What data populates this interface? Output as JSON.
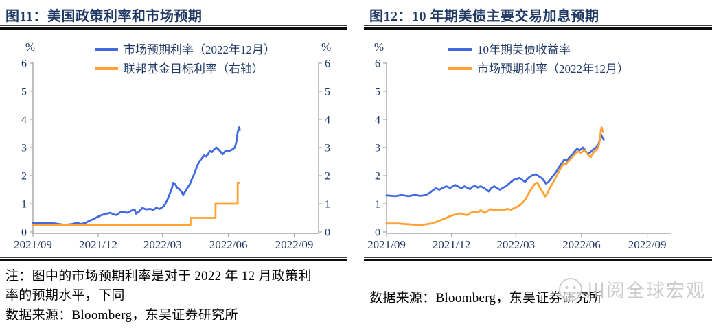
{
  "panels": [
    {
      "title": "图11：美国政策利率和市场预期",
      "note_line1": "注：图中的市场预期利率是对于 2022 年 12 月政策利",
      "note_line2": "率的预期水平，下同",
      "source": "数据来源：Bloomberg，东吴证券研究所"
    },
    {
      "title": "图12：10 年期美债主要交易加息预期",
      "source": "数据来源：Bloomberg，东吴证券研究所",
      "watermark": "川阅全球宏观"
    }
  ],
  "colors": {
    "blue_line": "#4169E1",
    "orange_line": "#FFA133",
    "navy_text": "#1F3864",
    "axis_gray": "#A6A6A6",
    "rule_black": "#0B0B0B",
    "watermark_gray": "#C6C6C6"
  },
  "chart_data": [
    {
      "type": "line",
      "title": "图11：美国政策利率和市场预期",
      "percent_left": "%",
      "percent_right": "%",
      "ylim": [
        0,
        6
      ],
      "yticks": [
        0,
        1,
        2,
        3,
        4,
        5,
        6
      ],
      "grid": false,
      "legend_position": "top-center",
      "x_domain": [
        "2021-09-01",
        "2022-10-05"
      ],
      "xticks": [
        "2021/09",
        "2021/12",
        "2022/03",
        "2022/06",
        "2022/09"
      ],
      "xtick_dates": [
        "2021-09-01",
        "2021-12-01",
        "2022-03-01",
        "2022-06-01",
        "2022-09-01"
      ],
      "series": [
        {
          "name": "市场预期利率（2022年12月）",
          "color": "#4169E1",
          "axis": "left",
          "points": [
            [
              "2021-09-01",
              0.32
            ],
            [
              "2021-09-13",
              0.31
            ],
            [
              "2021-09-27",
              0.32
            ],
            [
              "2021-10-07",
              0.28
            ],
            [
              "2021-10-16",
              0.25
            ],
            [
              "2021-10-26",
              0.28
            ],
            [
              "2021-11-02",
              0.33
            ],
            [
              "2021-11-07",
              0.28
            ],
            [
              "2021-11-14",
              0.33
            ],
            [
              "2021-11-19",
              0.4
            ],
            [
              "2021-11-24",
              0.45
            ],
            [
              "2021-11-29",
              0.52
            ],
            [
              "2021-12-06",
              0.6
            ],
            [
              "2021-12-13",
              0.65
            ],
            [
              "2021-12-18",
              0.68
            ],
            [
              "2021-12-23",
              0.62
            ],
            [
              "2021-12-27",
              0.6
            ],
            [
              "2022-01-01",
              0.7
            ],
            [
              "2022-01-06",
              0.72
            ],
            [
              "2022-01-11",
              0.68
            ],
            [
              "2022-01-16",
              0.75
            ],
            [
              "2022-01-21",
              0.8
            ],
            [
              "2022-01-23",
              0.65
            ],
            [
              "2022-01-27",
              0.72
            ],
            [
              "2022-02-01",
              0.85
            ],
            [
              "2022-02-06",
              0.8
            ],
            [
              "2022-02-12",
              0.82
            ],
            [
              "2022-02-16",
              0.78
            ],
            [
              "2022-02-20",
              0.85
            ],
            [
              "2022-02-25",
              0.82
            ],
            [
              "2022-03-02",
              0.9
            ],
            [
              "2022-03-05",
              1.0
            ],
            [
              "2022-03-08",
              1.15
            ],
            [
              "2022-03-11",
              1.35
            ],
            [
              "2022-03-14",
              1.55
            ],
            [
              "2022-03-16",
              1.75
            ],
            [
              "2022-03-19",
              1.68
            ],
            [
              "2022-03-22",
              1.55
            ],
            [
              "2022-03-25",
              1.52
            ],
            [
              "2022-03-28",
              1.4
            ],
            [
              "2022-03-30",
              1.32
            ],
            [
              "2022-04-02",
              1.45
            ],
            [
              "2022-04-05",
              1.58
            ],
            [
              "2022-04-08",
              1.68
            ],
            [
              "2022-04-10",
              1.82
            ],
            [
              "2022-04-13",
              1.98
            ],
            [
              "2022-04-16",
              2.18
            ],
            [
              "2022-04-19",
              2.38
            ],
            [
              "2022-04-22",
              2.52
            ],
            [
              "2022-04-25",
              2.62
            ],
            [
              "2022-04-28",
              2.72
            ],
            [
              "2022-05-01",
              2.68
            ],
            [
              "2022-05-04",
              2.78
            ],
            [
              "2022-05-06",
              2.88
            ],
            [
              "2022-05-09",
              2.84
            ],
            [
              "2022-05-12",
              2.93
            ],
            [
              "2022-05-15",
              3.0
            ],
            [
              "2022-05-18",
              2.94
            ],
            [
              "2022-05-21",
              2.85
            ],
            [
              "2022-05-24",
              2.76
            ],
            [
              "2022-05-27",
              2.85
            ],
            [
              "2022-05-30",
              2.9
            ],
            [
              "2022-06-02",
              2.88
            ],
            [
              "2022-06-04",
              2.9
            ],
            [
              "2022-06-07",
              2.94
            ],
            [
              "2022-06-10",
              3.0
            ],
            [
              "2022-06-12",
              3.18
            ],
            [
              "2022-06-14",
              3.55
            ],
            [
              "2022-06-16",
              3.72
            ],
            [
              "2022-06-17",
              3.62
            ]
          ]
        },
        {
          "name": "联邦基金目标利率（右轴）",
          "color": "#FFA133",
          "axis": "right",
          "points": [
            [
              "2021-09-01",
              0.25
            ],
            [
              "2022-04-09",
              0.25
            ],
            [
              "2022-04-09",
              0.5
            ],
            [
              "2022-05-14",
              0.5
            ],
            [
              "2022-05-14",
              1.0
            ],
            [
              "2022-06-14",
              1.0
            ],
            [
              "2022-06-14",
              1.75
            ],
            [
              "2022-06-16",
              1.75
            ]
          ]
        }
      ]
    },
    {
      "type": "line",
      "title": "图12：10 年期美债主要交易加息预期",
      "percent_left": "%",
      "ylim": [
        0,
        6
      ],
      "yticks": [
        0,
        1,
        2,
        3,
        4,
        5,
        6
      ],
      "grid": false,
      "legend_position": "top-center",
      "x_domain": [
        "2021-09-01",
        "2022-10-05"
      ],
      "xticks": [
        "2021/09",
        "2021/12",
        "2022/03",
        "2022/06",
        "2022/09"
      ],
      "xtick_dates": [
        "2021-09-01",
        "2021-12-01",
        "2022-03-01",
        "2022-06-01",
        "2022-09-01"
      ],
      "series": [
        {
          "name": "10年期美债收益率",
          "color": "#4169E1",
          "axis": "left",
          "points": [
            [
              "2021-09-01",
              1.3
            ],
            [
              "2021-09-13",
              1.27
            ],
            [
              "2021-09-22",
              1.31
            ],
            [
              "2021-10-02",
              1.27
            ],
            [
              "2021-10-11",
              1.32
            ],
            [
              "2021-10-18",
              1.28
            ],
            [
              "2021-10-26",
              1.31
            ],
            [
              "2021-10-31",
              1.38
            ],
            [
              "2021-11-05",
              1.48
            ],
            [
              "2021-11-09",
              1.55
            ],
            [
              "2021-11-14",
              1.5
            ],
            [
              "2021-11-19",
              1.57
            ],
            [
              "2021-11-24",
              1.62
            ],
            [
              "2021-11-29",
              1.56
            ],
            [
              "2021-12-03",
              1.62
            ],
            [
              "2021-12-06",
              1.67
            ],
            [
              "2021-12-11",
              1.6
            ],
            [
              "2021-12-15",
              1.55
            ],
            [
              "2021-12-19",
              1.62
            ],
            [
              "2021-12-23",
              1.57
            ],
            [
              "2021-12-27",
              1.52
            ],
            [
              "2021-12-30",
              1.6
            ],
            [
              "2022-01-03",
              1.63
            ],
            [
              "2022-01-07",
              1.58
            ],
            [
              "2022-01-11",
              1.62
            ],
            [
              "2022-01-15",
              1.57
            ],
            [
              "2022-01-19",
              1.5
            ],
            [
              "2022-01-22",
              1.44
            ],
            [
              "2022-01-26",
              1.57
            ],
            [
              "2022-01-30",
              1.62
            ],
            [
              "2022-02-03",
              1.55
            ],
            [
              "2022-02-07",
              1.5
            ],
            [
              "2022-02-11",
              1.57
            ],
            [
              "2022-02-15",
              1.62
            ],
            [
              "2022-02-18",
              1.68
            ],
            [
              "2022-02-22",
              1.77
            ],
            [
              "2022-02-26",
              1.85
            ],
            [
              "2022-03-02",
              1.88
            ],
            [
              "2022-03-06",
              1.92
            ],
            [
              "2022-03-10",
              1.85
            ],
            [
              "2022-03-14",
              1.78
            ],
            [
              "2022-03-17",
              1.88
            ],
            [
              "2022-03-21",
              1.97
            ],
            [
              "2022-03-25",
              2.02
            ],
            [
              "2022-03-29",
              2.05
            ],
            [
              "2022-04-02",
              1.98
            ],
            [
              "2022-04-06",
              1.92
            ],
            [
              "2022-04-10",
              1.8
            ],
            [
              "2022-04-12",
              1.72
            ],
            [
              "2022-04-15",
              1.76
            ],
            [
              "2022-04-18",
              1.85
            ],
            [
              "2022-04-21",
              1.95
            ],
            [
              "2022-04-24",
              2.05
            ],
            [
              "2022-04-27",
              2.15
            ],
            [
              "2022-04-30",
              2.28
            ],
            [
              "2022-05-03",
              2.4
            ],
            [
              "2022-05-06",
              2.5
            ],
            [
              "2022-05-08",
              2.58
            ],
            [
              "2022-05-11",
              2.52
            ],
            [
              "2022-05-14",
              2.62
            ],
            [
              "2022-05-17",
              2.7
            ],
            [
              "2022-05-20",
              2.78
            ],
            [
              "2022-05-23",
              2.88
            ],
            [
              "2022-05-26",
              2.96
            ],
            [
              "2022-05-29",
              2.9
            ],
            [
              "2022-06-01",
              2.95
            ],
            [
              "2022-06-03",
              3.0
            ],
            [
              "2022-06-05",
              2.94
            ],
            [
              "2022-06-07",
              2.86
            ],
            [
              "2022-06-10",
              2.78
            ],
            [
              "2022-06-13",
              2.82
            ],
            [
              "2022-06-16",
              2.9
            ],
            [
              "2022-06-19",
              2.96
            ],
            [
              "2022-06-22",
              3.02
            ],
            [
              "2022-06-25",
              3.12
            ],
            [
              "2022-06-27",
              3.35
            ],
            [
              "2022-06-28",
              3.46
            ],
            [
              "2022-06-30",
              3.38
            ],
            [
              "2022-07-02",
              3.28
            ]
          ]
        },
        {
          "name": "市场预期利率（2022年12月）",
          "color": "#FFA133",
          "axis": "left",
          "points": [
            [
              "2021-09-01",
              0.3
            ],
            [
              "2021-09-17",
              0.3
            ],
            [
              "2021-10-07",
              0.26
            ],
            [
              "2021-10-21",
              0.25
            ],
            [
              "2021-11-03",
              0.3
            ],
            [
              "2021-11-12",
              0.38
            ],
            [
              "2021-11-22",
              0.48
            ],
            [
              "2021-12-01",
              0.58
            ],
            [
              "2021-12-08",
              0.63
            ],
            [
              "2021-12-13",
              0.66
            ],
            [
              "2021-12-18",
              0.62
            ],
            [
              "2021-12-23",
              0.6
            ],
            [
              "2021-12-27",
              0.67
            ],
            [
              "2022-01-01",
              0.72
            ],
            [
              "2022-01-06",
              0.69
            ],
            [
              "2022-01-11",
              0.77
            ],
            [
              "2022-01-16",
              0.68
            ],
            [
              "2022-01-21",
              0.75
            ],
            [
              "2022-01-25",
              0.81
            ],
            [
              "2022-01-30",
              0.77
            ],
            [
              "2022-02-05",
              0.8
            ],
            [
              "2022-02-11",
              0.76
            ],
            [
              "2022-02-17",
              0.82
            ],
            [
              "2022-02-22",
              0.79
            ],
            [
              "2022-02-28",
              0.86
            ],
            [
              "2022-03-05",
              0.92
            ],
            [
              "2022-03-10",
              1.02
            ],
            [
              "2022-03-15",
              1.18
            ],
            [
              "2022-03-19",
              1.38
            ],
            [
              "2022-03-24",
              1.58
            ],
            [
              "2022-03-28",
              1.72
            ],
            [
              "2022-03-31",
              1.75
            ],
            [
              "2022-04-03",
              1.62
            ],
            [
              "2022-04-06",
              1.48
            ],
            [
              "2022-04-09",
              1.36
            ],
            [
              "2022-04-11",
              1.26
            ],
            [
              "2022-04-14",
              1.36
            ],
            [
              "2022-04-17",
              1.52
            ],
            [
              "2022-04-20",
              1.66
            ],
            [
              "2022-04-23",
              1.8
            ],
            [
              "2022-04-26",
              1.94
            ],
            [
              "2022-04-29",
              2.08
            ],
            [
              "2022-05-02",
              2.22
            ],
            [
              "2022-05-05",
              2.35
            ],
            [
              "2022-05-07",
              2.45
            ],
            [
              "2022-05-10",
              2.4
            ],
            [
              "2022-05-13",
              2.5
            ],
            [
              "2022-05-16",
              2.58
            ],
            [
              "2022-05-19",
              2.66
            ],
            [
              "2022-05-22",
              2.74
            ],
            [
              "2022-05-25",
              2.82
            ],
            [
              "2022-05-28",
              2.86
            ],
            [
              "2022-05-31",
              2.8
            ],
            [
              "2022-06-02",
              2.85
            ],
            [
              "2022-06-05",
              2.9
            ],
            [
              "2022-06-08",
              2.82
            ],
            [
              "2022-06-11",
              2.72
            ],
            [
              "2022-06-14",
              2.66
            ],
            [
              "2022-06-17",
              2.8
            ],
            [
              "2022-06-20",
              2.88
            ],
            [
              "2022-06-23",
              2.95
            ],
            [
              "2022-06-25",
              3.05
            ],
            [
              "2022-06-27",
              3.3
            ],
            [
              "2022-06-28",
              3.58
            ],
            [
              "2022-06-29",
              3.72
            ],
            [
              "2022-07-01",
              3.55
            ]
          ]
        }
      ]
    }
  ]
}
